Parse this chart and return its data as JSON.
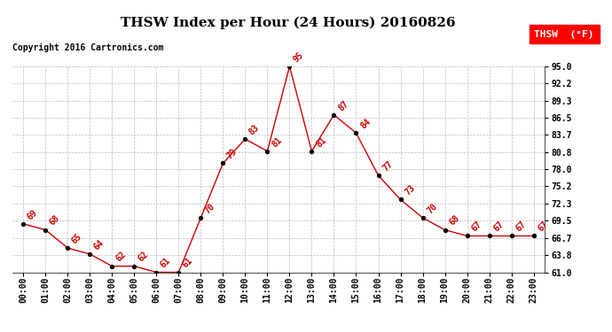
{
  "title": "THSW Index per Hour (24 Hours) 20160826",
  "copyright": "Copyright 2016 Cartronics.com",
  "legend_label": "THSW  (°F)",
  "hours": [
    0,
    1,
    2,
    3,
    4,
    5,
    6,
    7,
    8,
    9,
    10,
    11,
    12,
    13,
    14,
    15,
    16,
    17,
    18,
    19,
    20,
    21,
    22,
    23
  ],
  "values": [
    69,
    68,
    65,
    64,
    62,
    62,
    61,
    61,
    70,
    79,
    83,
    81,
    95,
    81,
    87,
    84,
    77,
    73,
    70,
    68,
    67,
    67,
    67,
    67
  ],
  "xlabels": [
    "00:00",
    "01:00",
    "02:00",
    "03:00",
    "04:00",
    "05:00",
    "06:00",
    "07:00",
    "08:00",
    "09:00",
    "10:00",
    "11:00",
    "12:00",
    "13:00",
    "14:00",
    "15:00",
    "16:00",
    "17:00",
    "18:00",
    "19:00",
    "20:00",
    "21:00",
    "22:00",
    "23:00"
  ],
  "ylim": [
    61.0,
    95.0
  ],
  "yticks": [
    61.0,
    63.8,
    66.7,
    69.5,
    72.3,
    75.2,
    78.0,
    80.8,
    83.7,
    86.5,
    89.3,
    92.2,
    95.0
  ],
  "line_color": "#cc0000",
  "marker_color": "#000000",
  "bg_color": "#ffffff",
  "grid_color": "#bbbbbb",
  "title_fontsize": 11,
  "copyright_fontsize": 7,
  "label_fontsize": 7,
  "annotation_fontsize": 7
}
